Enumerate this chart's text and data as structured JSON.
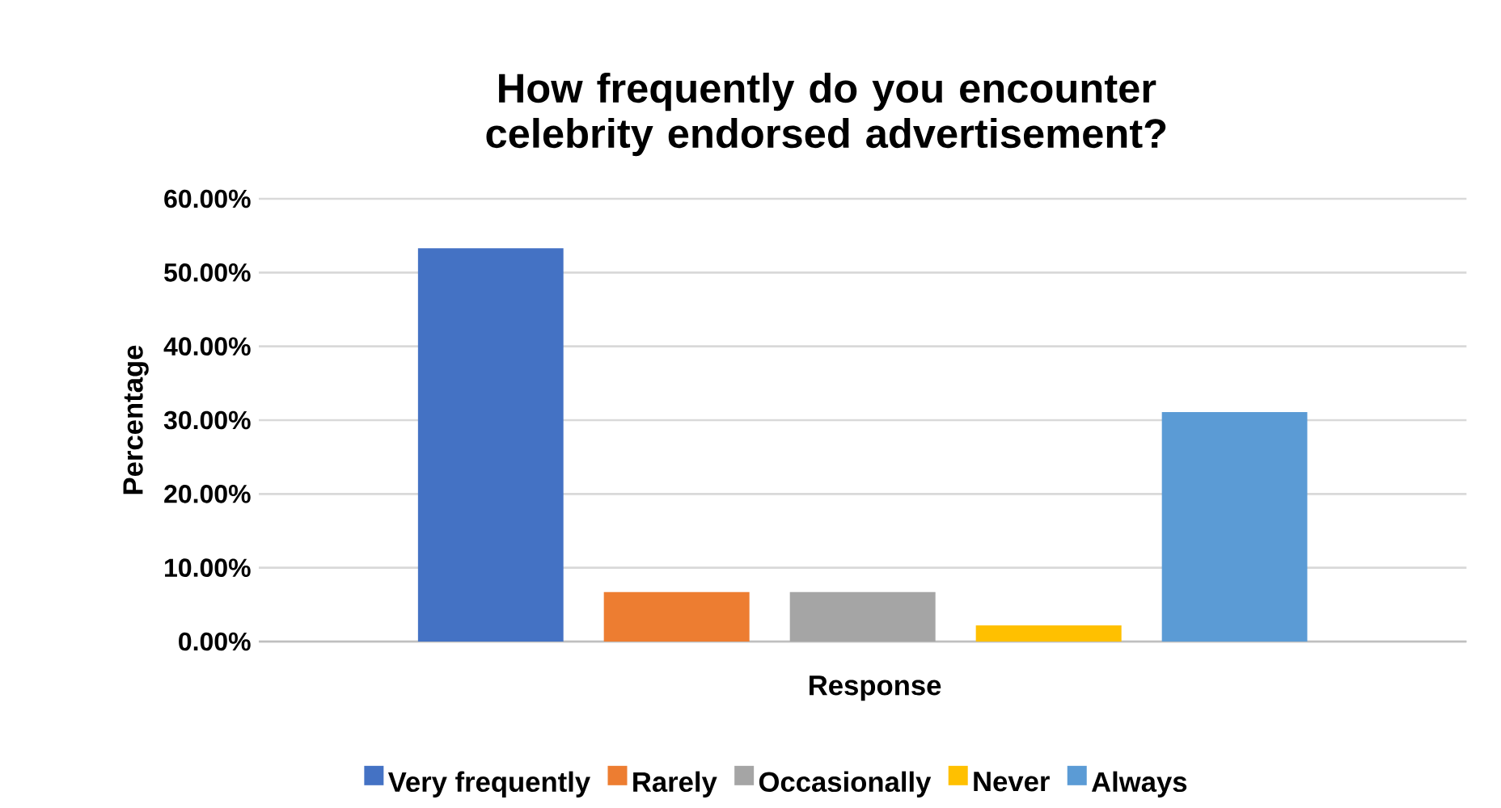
{
  "chart_data": {
    "type": "bar",
    "title": "How frequently do you encounter celebrity endorsed advertisement?",
    "xlabel": "Response",
    "ylabel": "Percentage",
    "categories": [
      null
    ],
    "series": [
      {
        "name": "Very frequently",
        "color": "#4472c4",
        "values": [
          53.3
        ]
      },
      {
        "name": "Rarely",
        "color": "#ed7d31",
        "values": [
          6.7
        ]
      },
      {
        "name": "Occasionally",
        "color": "#a5a5a5",
        "values": [
          6.7
        ]
      },
      {
        "name": "Never",
        "color": "#ffc000",
        "values": [
          2.2
        ]
      },
      {
        "name": "Always",
        "color": "#5b9bd5",
        "values": [
          31.1
        ]
      }
    ],
    "ylim": [
      0,
      60
    ],
    "yticks": [
      {
        "value": 0,
        "label": "0.00%"
      },
      {
        "value": 10,
        "label": "10.00%"
      },
      {
        "value": 20,
        "label": "20.00%"
      },
      {
        "value": 30,
        "label": "30.00%"
      },
      {
        "value": 40,
        "label": "40.00%"
      },
      {
        "value": 50,
        "label": "50.00%"
      },
      {
        "value": 60,
        "label": "60.00%"
      }
    ],
    "grid": "y",
    "legend": "bottom"
  }
}
